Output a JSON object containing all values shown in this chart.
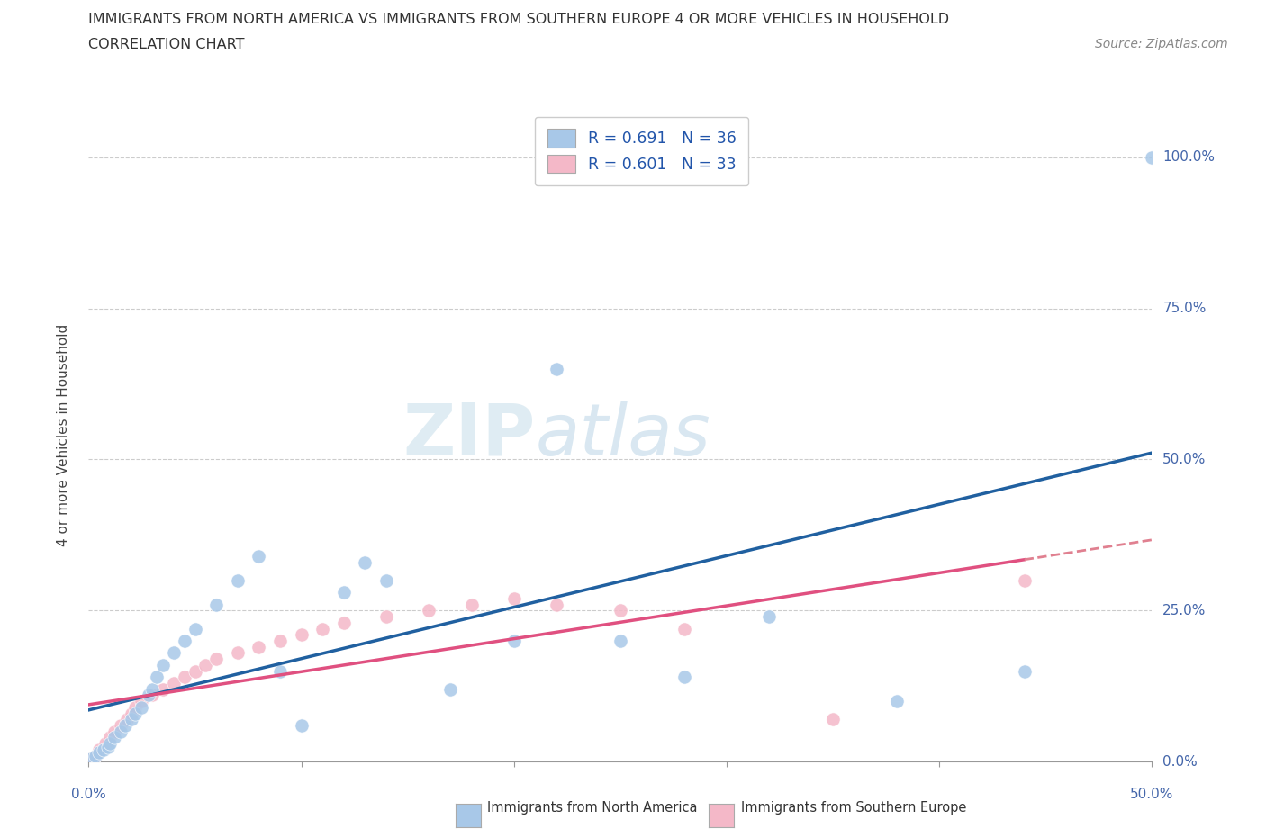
{
  "title_line1": "IMMIGRANTS FROM NORTH AMERICA VS IMMIGRANTS FROM SOUTHERN EUROPE 4 OR MORE VEHICLES IN HOUSEHOLD",
  "title_line2": "CORRELATION CHART",
  "source_text": "Source: ZipAtlas.com",
  "ylabel": "4 or more Vehicles in Household",
  "legend_text": [
    "R = 0.691   N = 36",
    "R = 0.601   N = 33"
  ],
  "legend_label1": "Immigrants from North America",
  "legend_label2": "Immigrants from Southern Europe",
  "color_blue": "#a8c8e8",
  "color_pink": "#f4b8c8",
  "color_blue_line": "#2060a0",
  "color_pink_line": "#e05080",
  "color_pink_dashed": "#e08090",
  "watermark_zip": "ZIP",
  "watermark_atlas": "atlas",
  "blue_x": [
    0.1,
    0.3,
    0.5,
    0.7,
    0.9,
    1.0,
    1.2,
    1.5,
    1.7,
    2.0,
    2.2,
    2.5,
    2.8,
    3.0,
    3.2,
    3.5,
    4.0,
    4.5,
    5.0,
    6.0,
    7.0,
    8.0,
    9.0,
    10.0,
    12.0,
    13.0,
    14.0,
    17.0,
    20.0,
    22.0,
    25.0,
    28.0,
    32.0,
    38.0,
    44.0,
    50.0
  ],
  "blue_y": [
    0.5,
    1.0,
    1.5,
    2.0,
    2.5,
    3.0,
    4.0,
    5.0,
    6.0,
    7.0,
    8.0,
    9.0,
    11.0,
    12.0,
    14.0,
    16.0,
    18.0,
    20.0,
    22.0,
    26.0,
    30.0,
    34.0,
    15.0,
    6.0,
    28.0,
    33.0,
    30.0,
    12.0,
    20.0,
    65.0,
    20.0,
    14.0,
    24.0,
    10.0,
    15.0,
    100.0
  ],
  "pink_x": [
    0.1,
    0.3,
    0.5,
    0.8,
    1.0,
    1.2,
    1.5,
    1.8,
    2.0,
    2.2,
    2.5,
    3.0,
    3.5,
    4.0,
    4.5,
    5.0,
    5.5,
    6.0,
    7.0,
    8.0,
    9.0,
    10.0,
    11.0,
    12.0,
    14.0,
    16.0,
    18.0,
    20.0,
    22.0,
    25.0,
    28.0,
    35.0,
    44.0
  ],
  "pink_y": [
    0.5,
    1.0,
    2.0,
    3.0,
    4.0,
    5.0,
    6.0,
    7.0,
    8.0,
    9.0,
    10.0,
    11.0,
    12.0,
    13.0,
    14.0,
    15.0,
    16.0,
    17.0,
    18.0,
    19.0,
    20.0,
    21.0,
    22.0,
    23.0,
    24.0,
    25.0,
    26.0,
    27.0,
    26.0,
    25.0,
    22.0,
    7.0,
    30.0
  ],
  "xmin": 0,
  "xmax": 50,
  "ymin": 0,
  "ymax": 108,
  "yticks": [
    0,
    25,
    50,
    75,
    100
  ],
  "ytick_labels": [
    "0.0%",
    "25.0%",
    "50.0%",
    "75.0%",
    "100.0%"
  ],
  "xtick_left_label": "0.0%",
  "xtick_right_label": "50.0%"
}
